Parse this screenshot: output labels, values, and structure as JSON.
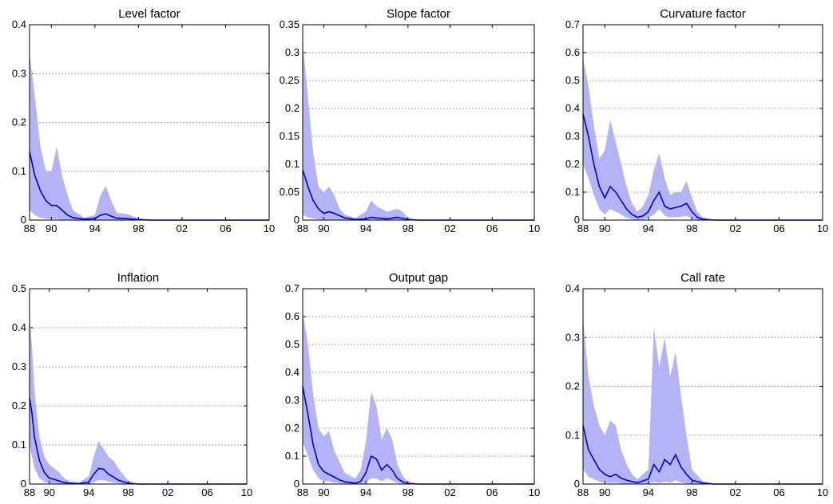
{
  "colors": {
    "band": "#b3b3f5",
    "line": "#0000c8",
    "grid": "#6a6a6a",
    "axis": "#000000"
  },
  "x_tick_labels": [
    "88",
    "90",
    "94",
    "98",
    "02",
    "06",
    "10"
  ],
  "chart_data": [
    {
      "type": "area",
      "title": "Level factor",
      "xlim": [
        1988,
        2010
      ],
      "ylim": [
        0,
        0.4
      ],
      "yticks": [
        "0",
        "0.1",
        "0.2",
        "0.3",
        "0.4"
      ],
      "grid": true,
      "x": [
        1988.0,
        1988.5,
        1989.0,
        1989.5,
        1990.0,
        1990.5,
        1991.0,
        1991.5,
        1992.0,
        1993.0,
        1994.0,
        1994.5,
        1995.0,
        1995.5,
        1996.0,
        1997.0,
        1998.0,
        1999.0,
        2000.0,
        2010.0
      ],
      "series": [
        {
          "values": [
            0.14,
            0.09,
            0.06,
            0.04,
            0.03,
            0.03,
            0.02,
            0.01,
            0.005,
            0.002,
            0.003,
            0.01,
            0.013,
            0.008,
            0.004,
            0.003,
            0.001,
            0.0,
            0.0,
            0.0
          ]
        }
      ],
      "band_upper": [
        0.34,
        0.25,
        0.15,
        0.1,
        0.1,
        0.15,
        0.09,
        0.05,
        0.02,
        0.005,
        0.01,
        0.05,
        0.07,
        0.04,
        0.015,
        0.012,
        0.004,
        0.001,
        0.0,
        0.0
      ],
      "band_lower": [
        0.02,
        0.01,
        0.005,
        0.003,
        0.002,
        0.002,
        0.001,
        0.0,
        0.0,
        0.0,
        0.0,
        0.0,
        0.0,
        0.0,
        0.0,
        0.0,
        0.0,
        0.0,
        0.0,
        0.0
      ]
    },
    {
      "type": "area",
      "title": "Slope factor",
      "xlim": [
        1988,
        2010
      ],
      "ylim": [
        0,
        0.35
      ],
      "yticks": [
        "0",
        "0.05",
        "0.1",
        "0.15",
        "0.2",
        "0.25",
        "0.3",
        "0.35"
      ],
      "grid": true,
      "x": [
        1988.0,
        1988.5,
        1989.0,
        1989.5,
        1990.0,
        1990.5,
        1991.0,
        1991.5,
        1992.0,
        1993.0,
        1994.0,
        1994.5,
        1995.0,
        1996.0,
        1997.0,
        1997.5,
        1998.0,
        1999.0,
        2010.0
      ],
      "series": [
        {
          "values": [
            0.09,
            0.06,
            0.035,
            0.02,
            0.012,
            0.015,
            0.012,
            0.008,
            0.004,
            0.001,
            0.002,
            0.005,
            0.004,
            0.002,
            0.005,
            0.003,
            0.001,
            0.0,
            0.0
          ]
        }
      ],
      "band_upper": [
        0.32,
        0.22,
        0.12,
        0.06,
        0.05,
        0.06,
        0.045,
        0.02,
        0.01,
        0.004,
        0.015,
        0.035,
        0.025,
        0.015,
        0.02,
        0.015,
        0.004,
        0.0,
        0.0
      ],
      "band_lower": [
        0.01,
        0.005,
        0.003,
        0.001,
        0.0,
        0.0,
        0.0,
        0.0,
        0.0,
        0.0,
        0.0,
        0.0,
        0.0,
        0.0,
        0.0,
        0.0,
        0.0,
        0.0,
        0.0
      ]
    },
    {
      "type": "area",
      "title": "Curvature factor",
      "xlim": [
        1988,
        2010
      ],
      "ylim": [
        0,
        0.7
      ],
      "yticks": [
        "0",
        "0.1",
        "0.2",
        "0.3",
        "0.4",
        "0.5",
        "0.6",
        "0.7"
      ],
      "grid": true,
      "x": [
        1988.0,
        1988.5,
        1989.0,
        1989.5,
        1990.0,
        1990.5,
        1991.0,
        1991.5,
        1992.0,
        1992.5,
        1993.0,
        1993.5,
        1994.0,
        1994.5,
        1995.0,
        1995.5,
        1996.0,
        1996.5,
        1997.0,
        1997.5,
        1998.0,
        1998.5,
        1999.0,
        2000.0,
        2010.0
      ],
      "series": [
        {
          "values": [
            0.38,
            0.3,
            0.2,
            0.12,
            0.08,
            0.12,
            0.1,
            0.07,
            0.04,
            0.02,
            0.01,
            0.015,
            0.03,
            0.07,
            0.1,
            0.05,
            0.04,
            0.045,
            0.05,
            0.06,
            0.03,
            0.01,
            0.003,
            0.0,
            0.0
          ]
        }
      ],
      "band_upper": [
        0.58,
        0.48,
        0.34,
        0.22,
        0.25,
        0.36,
        0.28,
        0.2,
        0.12,
        0.06,
        0.03,
        0.05,
        0.09,
        0.18,
        0.24,
        0.15,
        0.09,
        0.1,
        0.1,
        0.14,
        0.08,
        0.03,
        0.01,
        0.0,
        0.0
      ],
      "band_lower": [
        0.2,
        0.15,
        0.09,
        0.04,
        0.02,
        0.04,
        0.03,
        0.02,
        0.008,
        0.003,
        0.001,
        0.002,
        0.008,
        0.02,
        0.04,
        0.015,
        0.01,
        0.01,
        0.012,
        0.015,
        0.005,
        0.001,
        0.0,
        0.0,
        0.0
      ]
    },
    {
      "type": "area",
      "title": "Inflation",
      "xlim": [
        1988,
        2010
      ],
      "ylim": [
        0,
        0.5
      ],
      "yticks": [
        "0",
        "0.1",
        "0.2",
        "0.3",
        "0.4",
        "0.5"
      ],
      "grid": true,
      "x": [
        1988.0,
        1988.25,
        1988.5,
        1989.0,
        1989.5,
        1990.0,
        1990.5,
        1991.0,
        1991.5,
        1992.0,
        1993.0,
        1994.0,
        1994.5,
        1995.0,
        1995.5,
        1996.0,
        1996.5,
        1997.0,
        1998.0,
        1999.0,
        2010.0
      ],
      "series": [
        {
          "values": [
            0.22,
            0.18,
            0.12,
            0.06,
            0.03,
            0.015,
            0.012,
            0.008,
            0.004,
            0.002,
            0.001,
            0.005,
            0.025,
            0.04,
            0.038,
            0.025,
            0.018,
            0.01,
            0.002,
            0.0,
            0.0
          ]
        }
      ],
      "band_upper": [
        0.43,
        0.35,
        0.24,
        0.12,
        0.07,
        0.05,
        0.04,
        0.03,
        0.015,
        0.008,
        0.004,
        0.02,
        0.07,
        0.11,
        0.09,
        0.07,
        0.06,
        0.04,
        0.008,
        0.001,
        0.0
      ],
      "band_lower": [
        0.1,
        0.07,
        0.04,
        0.015,
        0.005,
        0.002,
        0.001,
        0.0,
        0.0,
        0.0,
        0.0,
        0.0,
        0.005,
        0.01,
        0.01,
        0.006,
        0.004,
        0.002,
        0.0,
        0.0,
        0.0
      ]
    },
    {
      "type": "area",
      "title": "Output gap",
      "xlim": [
        1988,
        2010
      ],
      "ylim": [
        0,
        0.7
      ],
      "yticks": [
        "0",
        "0.1",
        "0.2",
        "0.3",
        "0.4",
        "0.5",
        "0.6",
        "0.7"
      ],
      "grid": true,
      "x": [
        1988.0,
        1988.5,
        1989.0,
        1989.5,
        1990.0,
        1990.5,
        1991.0,
        1991.5,
        1992.0,
        1993.0,
        1993.5,
        1994.0,
        1994.5,
        1995.0,
        1995.5,
        1996.0,
        1996.5,
        1997.0,
        1997.5,
        1998.0,
        1999.0,
        2010.0
      ],
      "series": [
        {
          "values": [
            0.35,
            0.25,
            0.14,
            0.07,
            0.045,
            0.035,
            0.025,
            0.015,
            0.008,
            0.003,
            0.01,
            0.04,
            0.1,
            0.09,
            0.05,
            0.07,
            0.05,
            0.02,
            0.008,
            0.002,
            0.0,
            0.0
          ]
        }
      ],
      "band_upper": [
        0.62,
        0.5,
        0.32,
        0.2,
        0.17,
        0.19,
        0.12,
        0.08,
        0.04,
        0.02,
        0.05,
        0.15,
        0.33,
        0.28,
        0.16,
        0.2,
        0.16,
        0.07,
        0.03,
        0.008,
        0.001,
        0.0
      ],
      "band_lower": [
        0.15,
        0.1,
        0.05,
        0.02,
        0.01,
        0.01,
        0.005,
        0.003,
        0.001,
        0.0,
        0.0,
        0.005,
        0.02,
        0.02,
        0.01,
        0.02,
        0.012,
        0.004,
        0.001,
        0.0,
        0.0,
        0.0
      ]
    },
    {
      "type": "area",
      "title": "Call rate",
      "xlim": [
        1988,
        2010
      ],
      "ylim": [
        0,
        0.4
      ],
      "yticks": [
        "0",
        "0.1",
        "0.2",
        "0.3",
        "0.4"
      ],
      "grid": true,
      "x": [
        1988.0,
        1988.5,
        1989.0,
        1989.5,
        1990.0,
        1990.5,
        1991.0,
        1991.5,
        1992.0,
        1992.5,
        1993.0,
        1994.0,
        1994.5,
        1995.0,
        1995.5,
        1996.0,
        1996.5,
        1997.0,
        1997.5,
        1998.0,
        1999.0,
        2000.0,
        2010.0
      ],
      "series": [
        {
          "values": [
            0.12,
            0.07,
            0.05,
            0.03,
            0.02,
            0.015,
            0.02,
            0.012,
            0.008,
            0.005,
            0.003,
            0.01,
            0.04,
            0.025,
            0.05,
            0.04,
            0.06,
            0.035,
            0.02,
            0.008,
            0.002,
            0.0,
            0.0
          ]
        }
      ],
      "band_upper": [
        0.34,
        0.22,
        0.16,
        0.12,
        0.1,
        0.13,
        0.12,
        0.07,
        0.04,
        0.02,
        0.01,
        0.03,
        0.32,
        0.24,
        0.3,
        0.22,
        0.27,
        0.18,
        0.1,
        0.03,
        0.006,
        0.001,
        0.0
      ],
      "band_lower": [
        0.03,
        0.015,
        0.01,
        0.005,
        0.003,
        0.002,
        0.003,
        0.001,
        0.0,
        0.0,
        0.0,
        0.0,
        0.005,
        0.002,
        0.005,
        0.003,
        0.008,
        0.003,
        0.001,
        0.0,
        0.0,
        0.0,
        0.0
      ]
    }
  ]
}
